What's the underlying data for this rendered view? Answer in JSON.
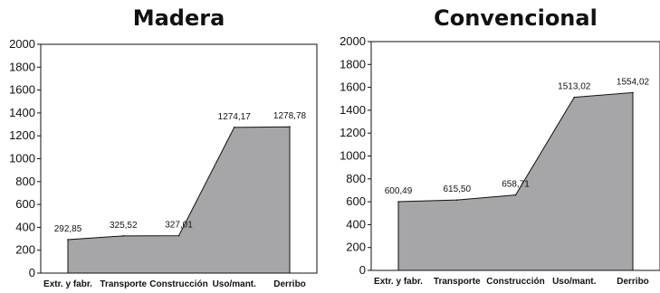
{
  "chart_data": [
    {
      "type": "area",
      "title": "Madera",
      "categories": [
        "Extr. y fabr.",
        "Transporte",
        "Construcción",
        "Uso/mant.",
        "Derribo"
      ],
      "values": [
        292.85,
        325.52,
        327.01,
        1274.17,
        1278.78
      ],
      "data_labels": [
        "292,85",
        "325,52",
        "327,01",
        "1274,17",
        "1278,78"
      ],
      "ylim": [
        0,
        2000
      ],
      "yticks": [
        0,
        200,
        400,
        600,
        800,
        1000,
        1200,
        1400,
        1600,
        1800,
        2000
      ],
      "grid": false,
      "colors": {
        "area_fill": "#a6a6a9",
        "line": "#111111"
      }
    },
    {
      "type": "area",
      "title": "Convencional",
      "categories": [
        "Extr. y fabr.",
        "Transporte",
        "Construcción",
        "Uso/mant.",
        "Derribo"
      ],
      "values": [
        600.49,
        615.5,
        658.71,
        1513.02,
        1554.02
      ],
      "data_labels": [
        "600,49",
        "615,50",
        "658,71",
        "1513,02",
        "1554,02"
      ],
      "ylim": [
        0,
        2000
      ],
      "yticks": [
        0,
        200,
        400,
        600,
        800,
        1000,
        1200,
        1400,
        1600,
        1800,
        2000
      ],
      "grid": false,
      "colors": {
        "area_fill": "#a6a6a9",
        "line": "#111111"
      }
    }
  ]
}
